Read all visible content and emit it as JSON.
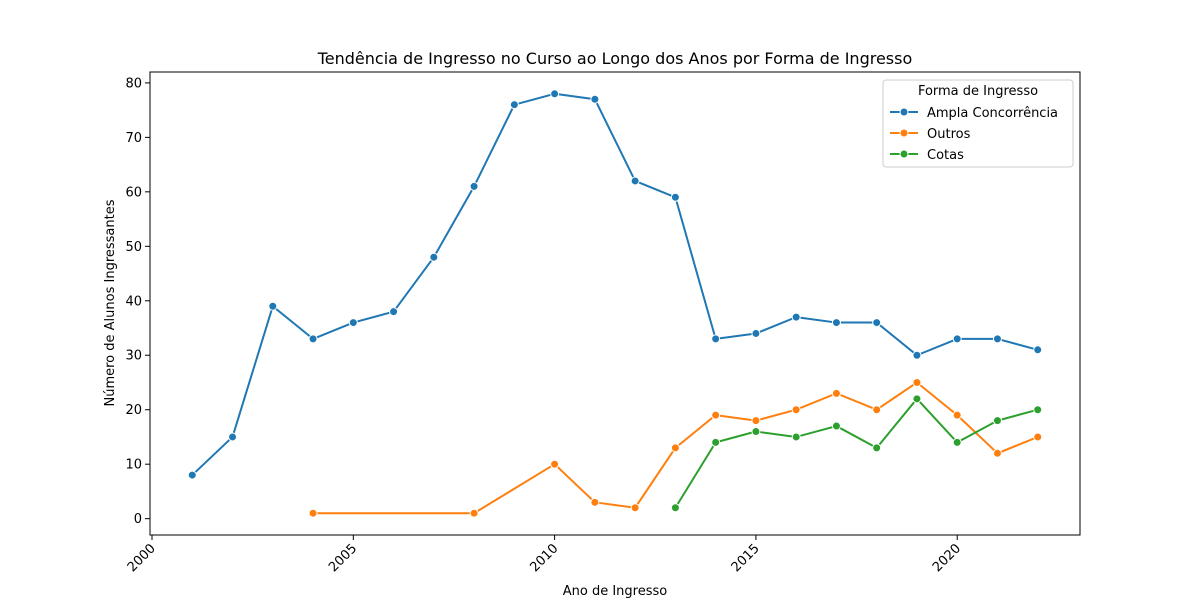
{
  "chart_data": {
    "type": "line",
    "title": "Tendência de Ingresso no Curso ao Longo dos Anos por Forma de Ingresso",
    "xlabel": "Ano de Ingresso",
    "ylabel": "Número de Alunos Ingressantes",
    "xlim": [
      1999.95,
      2023.05
    ],
    "ylim": [
      -3,
      82
    ],
    "xticks": [
      2000,
      2005,
      2010,
      2015,
      2020
    ],
    "yticks": [
      0,
      10,
      20,
      30,
      40,
      50,
      60,
      70,
      80
    ],
    "grid": false,
    "legend": {
      "title": "Forma de Ingresso",
      "placement": "top-right"
    },
    "series": [
      {
        "name": "Ampla Concorrência",
        "color": "#1f77b4",
        "x": [
          2001,
          2002,
          2003,
          2004,
          2005,
          2006,
          2007,
          2008,
          2009,
          2010,
          2011,
          2012,
          2013,
          2014,
          2015,
          2016,
          2017,
          2018,
          2019,
          2020,
          2021,
          2022
        ],
        "y": [
          8,
          15,
          39,
          33,
          36,
          38,
          48,
          61,
          76,
          78,
          77,
          62,
          59,
          33,
          34,
          37,
          36,
          36,
          30,
          33,
          33,
          31
        ]
      },
      {
        "name": "Outros",
        "color": "#ff7f0e",
        "x": [
          2004,
          2008,
          2010,
          2011,
          2012,
          2013,
          2014,
          2015,
          2016,
          2017,
          2018,
          2019,
          2020,
          2021,
          2022
        ],
        "y": [
          1,
          1,
          10,
          3,
          2,
          13,
          19,
          18,
          20,
          23,
          20,
          25,
          19,
          12,
          15
        ]
      },
      {
        "name": "Cotas",
        "color": "#2ca02c",
        "x": [
          2013,
          2014,
          2015,
          2016,
          2017,
          2018,
          2019,
          2020,
          2021,
          2022
        ],
        "y": [
          2,
          14,
          16,
          15,
          17,
          13,
          22,
          14,
          18,
          20
        ]
      }
    ]
  }
}
